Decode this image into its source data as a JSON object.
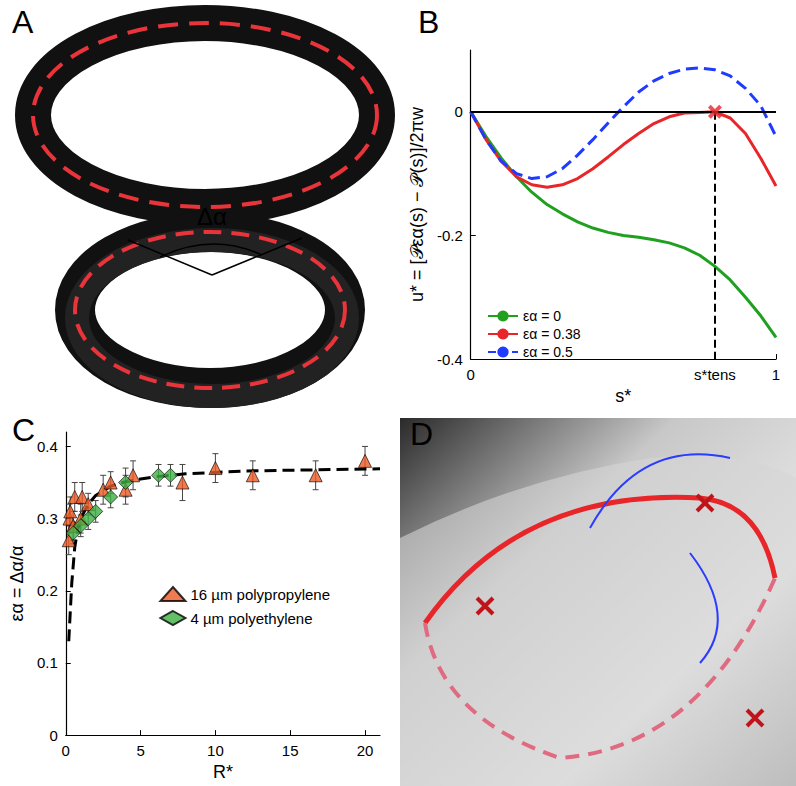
{
  "panels": [
    "A",
    "B",
    "C",
    "D"
  ],
  "panel_a": {
    "annotation": "Δα"
  },
  "chart_data": [
    {
      "type": "line",
      "x_label": "s*",
      "y_label": "u* = [𝒫εα(s) − 𝒫(s)]/2πw",
      "x": [
        0,
        0.05,
        0.1,
        0.15,
        0.2,
        0.25,
        0.3,
        0.35,
        0.4,
        0.45,
        0.5,
        0.55,
        0.6,
        0.65,
        0.7,
        0.75,
        0.8,
        0.85,
        0.9,
        0.95,
        1
      ],
      "series": [
        {
          "name": "εα = 0",
          "color": "#1fa01f",
          "line_style": "solid",
          "values": [
            0,
            -0.04,
            -0.075,
            -0.105,
            -0.13,
            -0.15,
            -0.165,
            -0.178,
            -0.188,
            -0.195,
            -0.2,
            -0.203,
            -0.207,
            -0.212,
            -0.22,
            -0.232,
            -0.25,
            -0.272,
            -0.3,
            -0.33,
            -0.365
          ]
        },
        {
          "name": "εα = 0.38",
          "color": "#e8262a",
          "line_style": "solid",
          "values": [
            0,
            -0.045,
            -0.08,
            -0.105,
            -0.118,
            -0.122,
            -0.118,
            -0.108,
            -0.092,
            -0.073,
            -0.053,
            -0.035,
            -0.019,
            -0.008,
            -0.002,
            -0.001,
            0,
            -0.01,
            -0.035,
            -0.075,
            -0.12
          ]
        },
        {
          "name": "εα = 0.5",
          "color": "#1f3bff",
          "line_style": "dashed",
          "values": [
            0,
            -0.045,
            -0.08,
            -0.1,
            -0.108,
            -0.105,
            -0.092,
            -0.07,
            -0.045,
            -0.018,
            0.008,
            0.032,
            0.05,
            0.062,
            0.069,
            0.071,
            0.068,
            0.058,
            0.038,
            0.01,
            -0.04
          ]
        }
      ],
      "xlim": [
        0,
        1
      ],
      "xticks": [
        0,
        {
          "value": 0.8,
          "label": "s*tens"
        },
        1
      ],
      "ylim": [
        -0.4,
        0.1
      ],
      "yticks": [
        -0.4,
        -0.2,
        0
      ],
      "legend": "lower left",
      "marked_point": {
        "x": 0.8,
        "y": 0,
        "color": "#e8262a",
        "marker": "x"
      },
      "reference_lines": {
        "x": 0.8,
        "y": 0
      }
    },
    {
      "type": "scatter",
      "x_label": "R*",
      "y_label": "εα = Δα/α",
      "series": [
        {
          "name": "16 µm polypropylene",
          "color": "#ee5a24",
          "marker": "triangle",
          "x": [
            0.2,
            0.25,
            0.3,
            0.5,
            0.6,
            1,
            1.1,
            1.5,
            2.5,
            3,
            4,
            4.5,
            7.8,
            10,
            12.5,
            16.7,
            20
          ],
          "values": [
            0.27,
            0.3,
            0.31,
            0.29,
            0.33,
            0.3,
            0.33,
            0.32,
            0.34,
            0.35,
            0.34,
            0.36,
            0.35,
            0.37,
            0.36,
            0.36,
            0.38
          ],
          "errors": [
            0.02,
            0.02,
            0.02,
            0.02,
            0.02,
            0.02,
            0.02,
            0.015,
            0.02,
            0.015,
            0.02,
            0.02,
            0.025,
            0.02,
            0.02,
            0.02,
            0.02
          ]
        },
        {
          "name": "4 µm polyethylene",
          "color": "#3cb043",
          "marker": "diamond",
          "x": [
            0.5,
            1,
            1.5,
            2,
            3,
            4,
            6.2,
            7
          ],
          "values": [
            0.28,
            0.29,
            0.3,
            0.31,
            0.33,
            0.35,
            0.36,
            0.36
          ],
          "errors": [
            0.015,
            0.015,
            0.015,
            0.015,
            0.015,
            0.02,
            0.015,
            0.015
          ]
        }
      ],
      "fit": {
        "color": "#000000",
        "line_style": "dashed",
        "x": [
          0.2,
          0.4,
          0.6,
          0.8,
          1,
          1.5,
          2,
          3,
          4,
          5,
          6,
          8,
          10,
          12,
          15,
          18,
          21
        ],
        "values": [
          0.13,
          0.21,
          0.26,
          0.285,
          0.3,
          0.32,
          0.332,
          0.345,
          0.351,
          0.355,
          0.358,
          0.362,
          0.364,
          0.366,
          0.367,
          0.368,
          0.369
        ]
      },
      "xlim": [
        0,
        21
      ],
      "xticks": [
        0,
        5,
        10,
        15,
        20
      ],
      "ylim": [
        0,
        0.42
      ],
      "yticks": [
        0,
        0.1,
        0.2,
        0.3,
        0.4
      ],
      "legend": "lower right"
    }
  ]
}
